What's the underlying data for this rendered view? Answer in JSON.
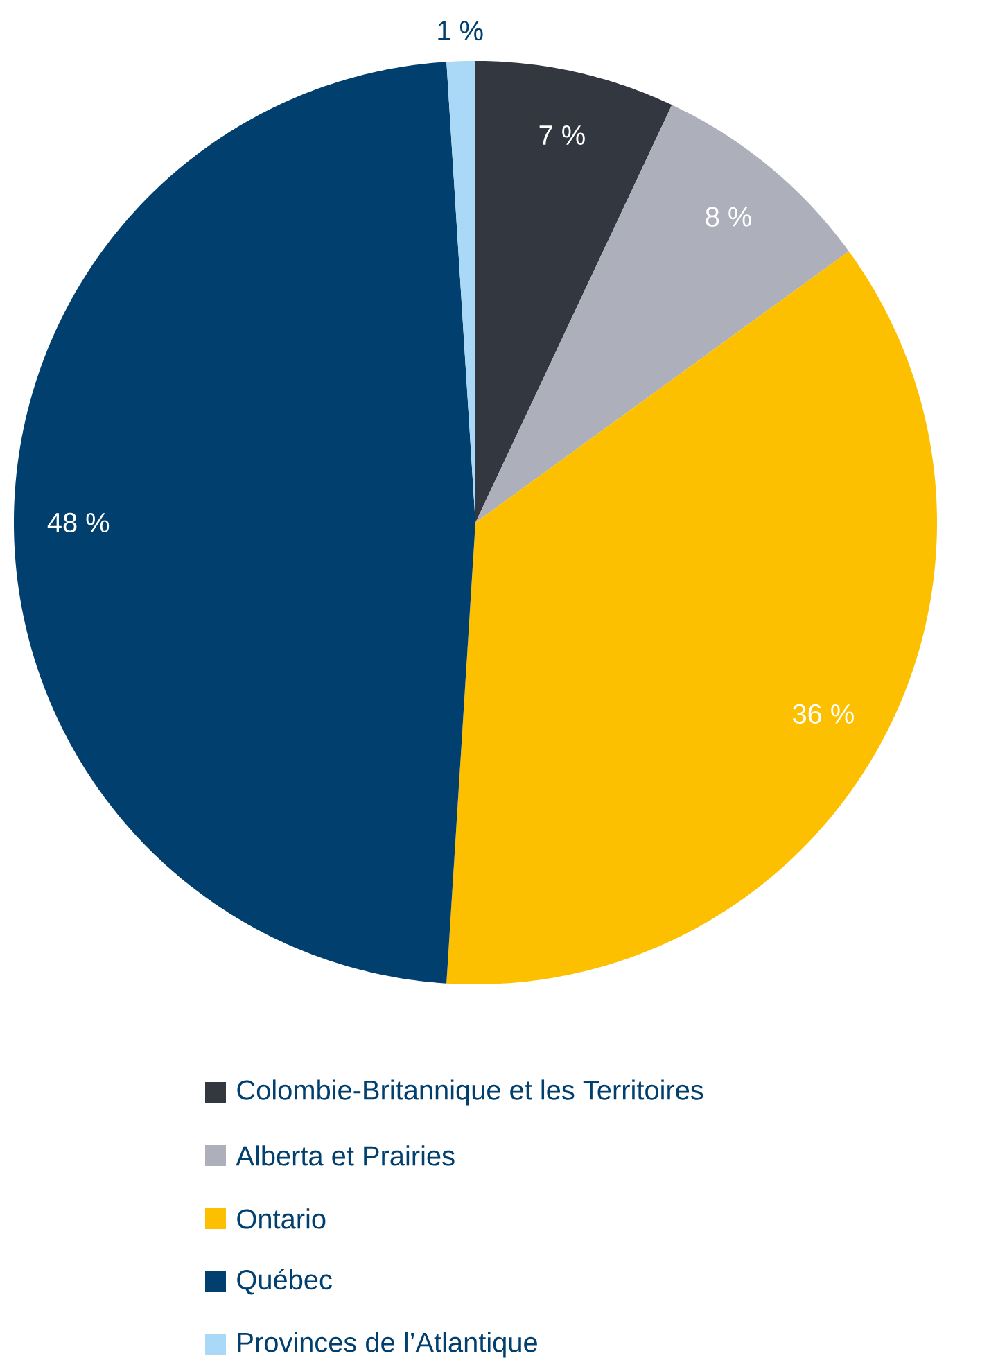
{
  "chart_data": {
    "type": "pie",
    "categories": [
      "Colombie-Britannique et les Territoires",
      "Alberta et Prairies",
      "Ontario",
      "Québec",
      "Provinces de l’Atlantique"
    ],
    "values": [
      7,
      8,
      36,
      48,
      1
    ],
    "colors": [
      "#333740",
      "#adb0ba",
      "#fdc000",
      "#003f6e",
      "#aad8f7"
    ],
    "value_labels": [
      "7 %",
      "8 %",
      "36 %",
      "48 %",
      "1 %"
    ],
    "legend": "bottom"
  }
}
